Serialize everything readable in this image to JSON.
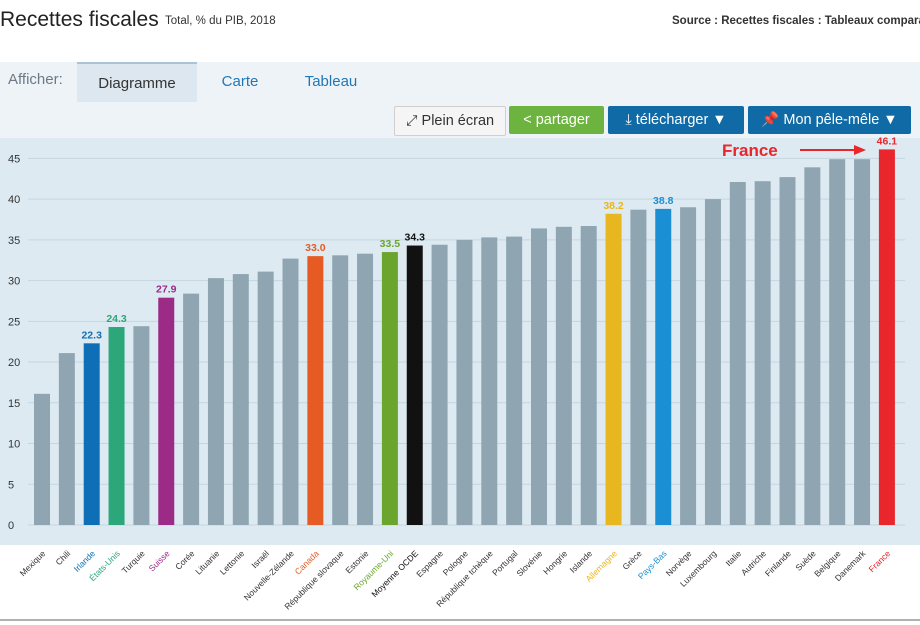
{
  "header": {
    "title": "Recettes fiscales",
    "subtitle": "Total, % du PIB, 2018",
    "source": "Source : Recettes fiscales : Tableaux comparatifs"
  },
  "tabs": {
    "label": "Afficher:",
    "items": [
      "Diagramme",
      "Carte",
      "Tableau"
    ],
    "active": "Diagramme"
  },
  "toolbar": {
    "plein_ecran": "Plein écran",
    "partager": "partager",
    "telecharger": "télécharger ▼",
    "pele_mele": "Mon pêle-mêle ▼"
  },
  "annotation": {
    "text": "France",
    "color": "#e8262b"
  },
  "chart_data": {
    "type": "bar",
    "ylim": [
      0,
      47.5
    ],
    "yticks": [
      0,
      5,
      10,
      15,
      20,
      25,
      30,
      35,
      40,
      45
    ],
    "grid": true,
    "default_color": "#8fa6b2",
    "categories": [
      "Mexique",
      "Chili",
      "Irlande",
      "États-Unis",
      "Turquie",
      "Suisse",
      "Corée",
      "Lituanie",
      "Lettonie",
      "Israël",
      "Nouvelle-Zélande",
      "Canada",
      "République slovaque",
      "Estonie",
      "Royaume-Uni",
      "Moyenne OCDE",
      "Espagne",
      "Pologne",
      "République tchèque",
      "Portugal",
      "Slovénie",
      "Hongrie",
      "Islande",
      "Allemagne",
      "Grèce",
      "Pays-Bas",
      "Norvège",
      "Luxembourg",
      "Italie",
      "Autriche",
      "Finlande",
      "Suède",
      "Belgique",
      "Danemark",
      "France"
    ],
    "values": [
      16.1,
      21.1,
      22.3,
      24.3,
      24.4,
      27.9,
      28.4,
      30.3,
      30.8,
      31.1,
      32.7,
      33.0,
      33.1,
      33.3,
      33.5,
      34.3,
      34.4,
      35.0,
      35.3,
      35.4,
      36.4,
      36.6,
      36.7,
      38.2,
      38.7,
      38.8,
      39.0,
      40.0,
      42.1,
      42.2,
      42.7,
      43.9,
      44.9,
      44.9,
      46.1
    ],
    "highlights": {
      "Irlande": {
        "color": "#0f6fb6",
        "label": "22.3"
      },
      "États-Unis": {
        "color": "#2ca77a",
        "label": "24.3"
      },
      "Suisse": {
        "color": "#9b2b87",
        "label": "27.9"
      },
      "Canada": {
        "color": "#e65a24",
        "label": "33.0"
      },
      "Royaume-Uni": {
        "color": "#6aa62e",
        "label": "33.5"
      },
      "Moyenne OCDE": {
        "color": "#111111",
        "label": "34.3"
      },
      "Allemagne": {
        "color": "#e8b61e",
        "label": "38.2"
      },
      "Pays-Bas": {
        "color": "#1a8fd3",
        "label": "38.8"
      },
      "France": {
        "color": "#e8262b",
        "label": "46.1"
      }
    }
  }
}
